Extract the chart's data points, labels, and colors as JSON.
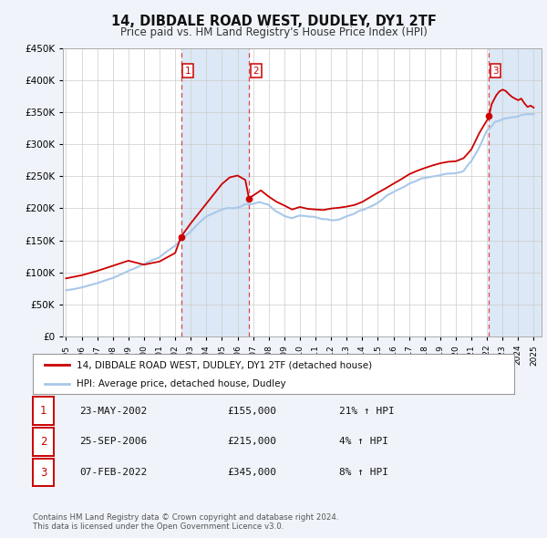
{
  "title": "14, DIBDALE ROAD WEST, DUDLEY, DY1 2TF",
  "subtitle": "Price paid vs. HM Land Registry's House Price Index (HPI)",
  "legend_line1": "14, DIBDALE ROAD WEST, DUDLEY, DY1 2TF (detached house)",
  "legend_line2": "HPI: Average price, detached house, Dudley",
  "footer1": "Contains HM Land Registry data © Crown copyright and database right 2024.",
  "footer2": "This data is licensed under the Open Government Licence v3.0.",
  "sale_color": "#cc0000",
  "hpi_color": "#a8c8e8",
  "shade_color": "#dce8f5",
  "background_color": "#f0f4fa",
  "plot_bg": "#ffffff",
  "ylim": [
    0,
    450000
  ],
  "yticks": [
    0,
    50000,
    100000,
    150000,
    200000,
    250000,
    300000,
    350000,
    400000,
    450000
  ],
  "sale1_x": 2002.38,
  "sale2_x": 2006.73,
  "sale3_x": 2022.1,
  "xlim_left": 1994.8,
  "xlim_right": 2025.5,
  "transactions": [
    {
      "num": "1",
      "date": "23-MAY-2002",
      "price": "£155,000",
      "pct": "21% ↑ HPI"
    },
    {
      "num": "2",
      "date": "25-SEP-2006",
      "price": "£215,000",
      "pct": "4% ↑ HPI"
    },
    {
      "num": "3",
      "date": "07-FEB-2022",
      "price": "£345,000",
      "pct": "8% ↑ HPI"
    }
  ]
}
